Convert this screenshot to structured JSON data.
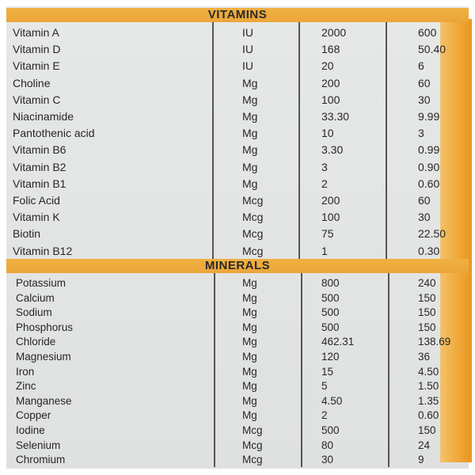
{
  "vitamins": {
    "title": "VITAMINS",
    "rows": [
      {
        "name": "Vitamin A",
        "unit": "IU",
        "value_a": "2000",
        "value_b": "600"
      },
      {
        "name": "Vitamin D",
        "unit": "IU",
        "value_a": "168",
        "value_b": "50.40"
      },
      {
        "name": "Vitamin E",
        "unit": "IU",
        "value_a": "20",
        "value_b": "6"
      },
      {
        "name": "Choline",
        "unit": "Mg",
        "value_a": "200",
        "value_b": "60"
      },
      {
        "name": "Vitamin C",
        "unit": "Mg",
        "value_a": "100",
        "value_b": "30"
      },
      {
        "name": "Niacinamide",
        "unit": "Mg",
        "value_a": "33.30",
        "value_b": "9.99"
      },
      {
        "name": "Pantothenic acid",
        "unit": "Mg",
        "value_a": "10",
        "value_b": "3"
      },
      {
        "name": "Vitamin B6",
        "unit": "Mg",
        "value_a": "3.30",
        "value_b": "0.99"
      },
      {
        "name": "Vitamin B2",
        "unit": "Mg",
        "value_a": "3",
        "value_b": "0.90"
      },
      {
        "name": "Vitamin B1",
        "unit": "Mg",
        "value_a": "2",
        "value_b": "0.60"
      },
      {
        "name": "Folic Acid",
        "unit": "Mcg",
        "value_a": "200",
        "value_b": "60"
      },
      {
        "name": "Vitamin K",
        "unit": "Mcg",
        "value_a": "100",
        "value_b": "30"
      },
      {
        "name": "Biotin",
        "unit": "Mcg",
        "value_a": "75",
        "value_b": "22.50"
      },
      {
        "name": "Vitamin B12",
        "unit": "Mcg",
        "value_a": "1",
        "value_b": "0.30"
      }
    ]
  },
  "minerals": {
    "title": "MINERALS",
    "rows": [
      {
        "name": "Potassium",
        "unit": "Mg",
        "value_a": "800",
        "value_b": "240"
      },
      {
        "name": "Calcium",
        "unit": "Mg",
        "value_a": "500",
        "value_b": "150"
      },
      {
        "name": "Sodium",
        "unit": "Mg",
        "value_a": "500",
        "value_b": "150"
      },
      {
        "name": "Phosphorus",
        "unit": "Mg",
        "value_a": "500",
        "value_b": "150"
      },
      {
        "name": "Chloride",
        "unit": "Mg",
        "value_a": "462.31",
        "value_b": "138.69"
      },
      {
        "name": "Magnesium",
        "unit": "Mg",
        "value_a": "120",
        "value_b": "36"
      },
      {
        "name": "Iron",
        "unit": "Mg",
        "value_a": "15",
        "value_b": "4.50"
      },
      {
        "name": "Zinc",
        "unit": "Mg",
        "value_a": "5",
        "value_b": "1.50"
      },
      {
        "name": "Manganese",
        "unit": "Mg",
        "value_a": "4.50",
        "value_b": "1.35"
      },
      {
        "name": "Copper",
        "unit": "Mg",
        "value_a": "2",
        "value_b": "0.60"
      },
      {
        "name": "Iodine",
        "unit": "Mcg",
        "value_a": "500",
        "value_b": "150"
      },
      {
        "name": "Selenium",
        "unit": "Mcg",
        "value_a": "80",
        "value_b": "24"
      },
      {
        "name": "Chromium",
        "unit": "Mcg",
        "value_a": "30",
        "value_b": "9"
      }
    ]
  },
  "colors": {
    "header_orange": "#eca53a",
    "side_strip_orange": "#f0a93a",
    "panel_gray": "#e3e5e4",
    "text": "#262626"
  }
}
